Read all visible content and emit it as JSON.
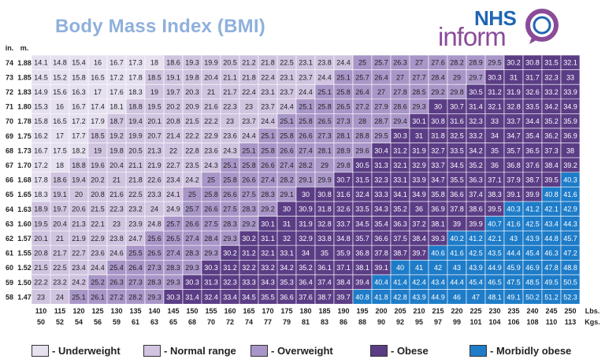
{
  "title": "Body Mass Index (BMI)",
  "logo": {
    "top": "NHS",
    "bottom": "inform"
  },
  "colors": {
    "underweight": "#e6e0ef",
    "normal": "#d0c4e0",
    "overweight": "#a996c8",
    "obese": "#5b3d85",
    "morbid": "#1e7cc8"
  },
  "legend": [
    {
      "key": "underweight",
      "label": "- Underweight"
    },
    {
      "key": "normal",
      "label": "- Normal range"
    },
    {
      "key": "overweight",
      "label": "- Overweight"
    },
    {
      "key": "obese",
      "label": "- Obese"
    },
    {
      "key": "morbid",
      "label": "- Morbidly obese"
    }
  ],
  "chart_data": {
    "type": "heatmap",
    "title": "Body Mass Index (BMI)",
    "row_header": [
      "in.",
      "m."
    ],
    "col_units": [
      "Lbs.",
      "Kgs."
    ],
    "height_in": [
      "74",
      "73",
      "72",
      "71",
      "70",
      "69",
      "68",
      "67",
      "66",
      "65",
      "64",
      "63",
      "62",
      "61",
      "60",
      "59",
      "58"
    ],
    "height_m": [
      "1.88",
      "1.85",
      "1.83",
      "1.80",
      "1.78",
      "1.75",
      "1.73",
      "1.70",
      "1.68",
      "1.65",
      "1.63",
      "1.60",
      "1.57",
      "1.55",
      "1.52",
      "1.50",
      "1.47"
    ],
    "weight_lbs": [
      "110",
      "115",
      "120",
      "125",
      "130",
      "135",
      "140",
      "145",
      "150",
      "155",
      "160",
      "165",
      "170",
      "175",
      "180",
      "185",
      "190",
      "195",
      "200",
      "205",
      "210",
      "215",
      "220",
      "225",
      "230",
      "235",
      "240",
      "245",
      "250"
    ],
    "weight_kgs": [
      "50",
      "52",
      "54",
      "56",
      "59",
      "61",
      "63",
      "65",
      "68",
      "70",
      "72",
      "74",
      "77",
      "79",
      "81",
      "83",
      "86",
      "88",
      "90",
      "92",
      "95",
      "97",
      "99",
      "101",
      "104",
      "106",
      "108",
      "110",
      "113"
    ],
    "values": [
      [
        14.1,
        14.8,
        15.4,
        16,
        16.7,
        17.3,
        18,
        18.6,
        19.3,
        19.9,
        20.5,
        21.2,
        21.8,
        22.5,
        23.1,
        23.8,
        24.4,
        25,
        25.7,
        26.3,
        27,
        27.6,
        28.2,
        28.9,
        29.5,
        30.2,
        30.8,
        31.5,
        32.1
      ],
      [
        14.5,
        15.2,
        15.8,
        16.5,
        17.2,
        17.8,
        18.5,
        19.1,
        19.8,
        20.4,
        21.1,
        21.8,
        22.4,
        23.1,
        23.7,
        24.4,
        25.1,
        25.7,
        26.4,
        27,
        27.7,
        28.4,
        29,
        29.7,
        30.3,
        31,
        31.7,
        32.3,
        33
      ],
      [
        14.9,
        15.6,
        16.3,
        17,
        17.6,
        18.3,
        19,
        19.7,
        20.3,
        21,
        21.7,
        22.4,
        23.1,
        23.7,
        24.4,
        25.1,
        25.8,
        26.4,
        27,
        27.8,
        28.5,
        29.2,
        29.8,
        30.5,
        31.2,
        31.9,
        32.6,
        33.2,
        33.9
      ],
      [
        15.3,
        16,
        16.7,
        17.4,
        18.1,
        18.8,
        19.5,
        20.2,
        20.9,
        21.6,
        22.3,
        23,
        23.7,
        24.4,
        25.1,
        25.8,
        26.5,
        27.2,
        27.9,
        28.6,
        29.3,
        30,
        30.7,
        31.4,
        32.1,
        32.8,
        33.5,
        34.2,
        34.9
      ],
      [
        15.8,
        16.5,
        17.2,
        17.9,
        18.7,
        19.4,
        20.1,
        20.8,
        21.5,
        22.2,
        23,
        23.7,
        24.4,
        25.1,
        25.8,
        26.5,
        27.3,
        28,
        28.7,
        29.4,
        30.1,
        30.8,
        31.6,
        32.3,
        33,
        33.7,
        34.4,
        35.2,
        35.9
      ],
      [
        16.2,
        17,
        17.7,
        18.5,
        19.2,
        19.9,
        20.7,
        21.4,
        22.2,
        22.9,
        23.6,
        24.4,
        25.1,
        25.8,
        26.6,
        27.3,
        28.1,
        28.8,
        29.5,
        30.3,
        31,
        31.8,
        32.5,
        33.2,
        34,
        34.7,
        35.4,
        36.2,
        36.9
      ],
      [
        16.7,
        17.5,
        18.2,
        19,
        19.8,
        20.5,
        21.3,
        22,
        22.8,
        23.6,
        24.3,
        25.1,
        25.8,
        26.6,
        27.4,
        28.1,
        28.9,
        29.6,
        30.4,
        31.2,
        31.9,
        32.7,
        33.5,
        34.2,
        35,
        35.7,
        36.5,
        37.3,
        38
      ],
      [
        17.2,
        18,
        18.8,
        19.6,
        20.4,
        21.1,
        21.9,
        22.7,
        23.5,
        24.3,
        25.1,
        25.8,
        26.6,
        27.4,
        28.2,
        29,
        29.8,
        30.5,
        31.3,
        32.1,
        32.9,
        33.7,
        34.5,
        35.2,
        36,
        36.8,
        37.6,
        38.4,
        39.2
      ],
      [
        17.8,
        18.6,
        19.4,
        20.2,
        21,
        21.8,
        22.6,
        23.4,
        24.2,
        25,
        25.8,
        26.6,
        27.4,
        28.2,
        29.1,
        29.9,
        30.7,
        31.5,
        32.3,
        33.1,
        33.9,
        34.7,
        35.5,
        36.3,
        37.1,
        37.9,
        38.7,
        39.5,
        40.3
      ],
      [
        18.3,
        19.1,
        20,
        20.8,
        21.6,
        22.5,
        23.3,
        24.1,
        25,
        25.8,
        26.6,
        27.5,
        28.3,
        29.1,
        30,
        30.8,
        31.6,
        32.4,
        33.3,
        34.1,
        34.9,
        35.8,
        36.6,
        37.4,
        38.3,
        39.1,
        39.9,
        40.8,
        41.6
      ],
      [
        18.9,
        19.7,
        20.6,
        21.5,
        22.3,
        23.2,
        24,
        24.9,
        25.7,
        26.6,
        27.5,
        28.3,
        29.2,
        30,
        30.9,
        31.8,
        32.6,
        33.5,
        34.3,
        35.2,
        36,
        36.9,
        37.8,
        38.6,
        39.5,
        40.3,
        41.2,
        42.1,
        42.9
      ],
      [
        19.5,
        20.4,
        21.3,
        22.1,
        23,
        23.9,
        24.8,
        25.7,
        26.6,
        27.5,
        28.3,
        29.2,
        30.1,
        31,
        31.9,
        32.8,
        33.7,
        34.5,
        35.4,
        36.3,
        37.2,
        38.1,
        39,
        39.9,
        40.7,
        41.6,
        42.5,
        43.4,
        44.3
      ],
      [
        20.1,
        21,
        21.9,
        22.9,
        23.8,
        24.7,
        25.6,
        26.5,
        27.4,
        28.4,
        29.3,
        30.2,
        31.1,
        32,
        32.9,
        33.8,
        34.8,
        35.7,
        36.6,
        37.5,
        38.4,
        39.3,
        40.2,
        41.2,
        42.1,
        43,
        43.9,
        44.8,
        45.7
      ],
      [
        20.8,
        21.7,
        22.7,
        23.6,
        24.6,
        25.5,
        26.5,
        27.4,
        28.3,
        29.3,
        30.2,
        31.2,
        32.1,
        33.1,
        34,
        35,
        35.9,
        36.8,
        37.8,
        38.7,
        39.7,
        40.6,
        41.6,
        42.5,
        43.5,
        44.4,
        45.4,
        46.3,
        47.2
      ],
      [
        21.5,
        22.5,
        23.4,
        24.4,
        25.4,
        26.4,
        27.3,
        28.3,
        29.3,
        30.3,
        31.2,
        32.2,
        33.2,
        34.2,
        35.2,
        36.1,
        37.1,
        38.1,
        39.1,
        40,
        41,
        42,
        43,
        43.9,
        44.9,
        45.9,
        46.9,
        47.8,
        48.8
      ],
      [
        22.2,
        23.2,
        24.2,
        25.2,
        26.3,
        27.3,
        28.3,
        29.3,
        30.3,
        31.3,
        32.3,
        33.3,
        34.3,
        35.3,
        36.4,
        37.4,
        38.4,
        39.4,
        40.4,
        41.4,
        42.4,
        43.4,
        44.4,
        45.4,
        46.5,
        47.5,
        48.5,
        49.5,
        50.5
      ],
      [
        23,
        24,
        25.1,
        26.1,
        27.2,
        28.2,
        29.3,
        30.3,
        31.4,
        32.4,
        33.4,
        34.5,
        35.5,
        36.6,
        37.6,
        38.7,
        39.7,
        40.8,
        41.8,
        42.8,
        43.9,
        44.9,
        46,
        47,
        48.1,
        49.1,
        50.2,
        51.2,
        52.3
      ]
    ]
  }
}
